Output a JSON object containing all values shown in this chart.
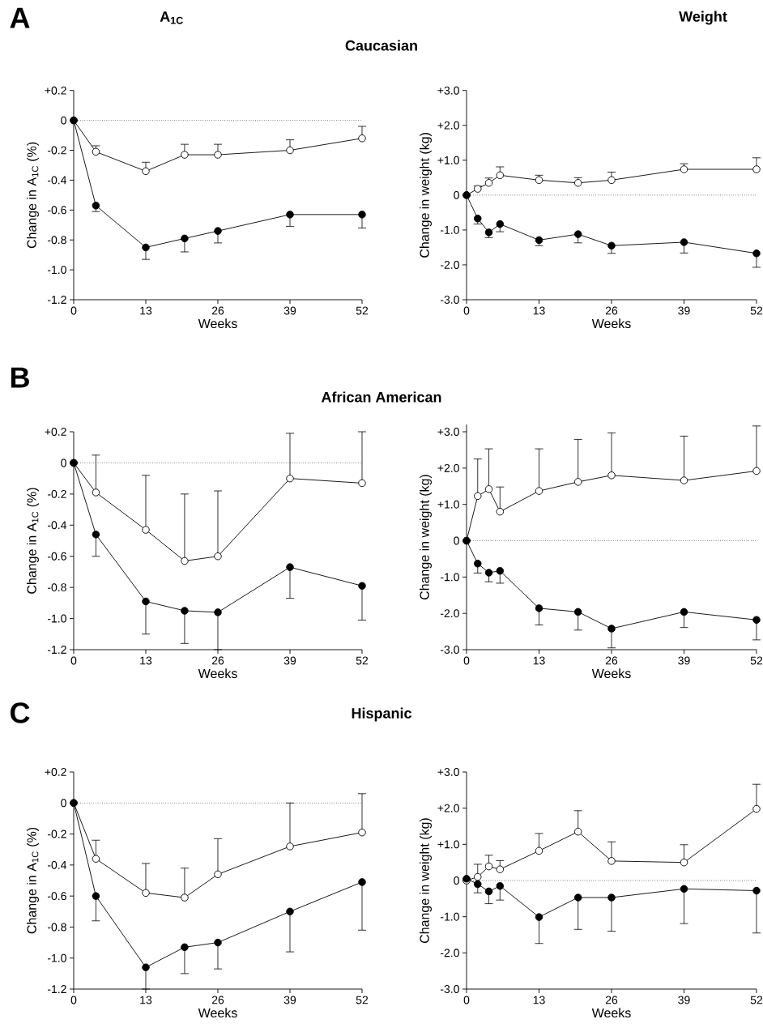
{
  "chart_data": [
    {
      "type": "line",
      "title": "A$_{1C}$",
      "annotations": [
        "A",
        "Caucasian"
      ],
      "xlabel": "Weeks",
      "ylabel": "Change in A$_{1C}$ (%)",
      "marker": "circle",
      "xlim": [
        0,
        52
      ],
      "xticks": [
        0,
        13,
        26,
        39,
        52
      ],
      "ylim": [
        -1.2,
        0.2
      ],
      "yticks": [
        {
          "value": 0.2,
          "label": "+0.2"
        },
        {
          "value": 0,
          "label": "0"
        },
        {
          "value": -0.2,
          "label": "-0.2"
        },
        {
          "value": -0.4,
          "label": "-0.4"
        },
        {
          "value": -0.6,
          "label": "-0.6"
        },
        {
          "value": -0.8,
          "label": "-0.8"
        },
        {
          "value": -1.0,
          "label": "-1.0"
        },
        {
          "value": -1.2,
          "label": "-1.2"
        }
      ],
      "ref_lines": [
        {
          "axis": "y",
          "value": 0,
          "line_style": "dotted"
        }
      ],
      "series": [
        {
          "color": "#ffffff",
          "x": [
            0,
            4,
            13,
            20,
            26,
            39,
            52
          ],
          "values": [
            0,
            -0.21,
            -0.34,
            -0.23,
            -0.23,
            -0.2,
            -0.12
          ],
          "errors": [
            null,
            [
              -0.21,
              -0.17
            ],
            [
              -0.34,
              -0.28
            ],
            [
              -0.23,
              -0.16
            ],
            [
              -0.23,
              -0.16
            ],
            [
              -0.2,
              -0.13
            ],
            [
              -0.12,
              -0.04
            ]
          ]
        },
        {
          "color": "#000000",
          "x": [
            0,
            4,
            13,
            20,
            26,
            39,
            52
          ],
          "values": [
            0,
            -0.57,
            -0.85,
            -0.79,
            -0.74,
            -0.63,
            -0.63
          ],
          "errors": [
            null,
            [
              -0.61,
              -0.57
            ],
            [
              -0.93,
              -0.85
            ],
            [
              -0.88,
              -0.79
            ],
            [
              -0.82,
              -0.74
            ],
            [
              -0.71,
              -0.63
            ],
            [
              -0.72,
              -0.63
            ]
          ]
        }
      ]
    },
    {
      "type": "line",
      "title": "Weight",
      "xlabel": "Weeks",
      "ylabel": "Change in weight (kg)",
      "marker": "circle",
      "xlim": [
        0,
        52
      ],
      "xticks": [
        0,
        13,
        26,
        39,
        52
      ],
      "ylim": [
        -3,
        3
      ],
      "yticks": [
        {
          "value": 3,
          "label": "+3.0"
        },
        {
          "value": 2,
          "label": "+2.0"
        },
        {
          "value": 1,
          "label": "+1.0"
        },
        {
          "value": 0,
          "label": "0"
        },
        {
          "value": -1,
          "label": "-1.0"
        },
        {
          "value": -2,
          "label": "-2.0"
        },
        {
          "value": -3,
          "label": "-3.0"
        }
      ],
      "ref_lines": [
        {
          "axis": "y",
          "value": 0,
          "line_style": "dotted"
        }
      ],
      "series": [
        {
          "color": "#ffffff",
          "x": [
            0,
            2,
            4,
            6,
            13,
            20,
            26,
            39,
            52
          ],
          "values": [
            0,
            0.18,
            0.35,
            0.57,
            0.43,
            0.35,
            0.43,
            0.74,
            0.74
          ],
          "errors": [
            null,
            [
              0.18,
              0.26
            ],
            [
              0.35,
              0.49
            ],
            [
              0.57,
              0.81
            ],
            [
              0.43,
              0.57
            ],
            [
              0.35,
              0.5
            ],
            [
              0.43,
              0.66
            ],
            [
              0.74,
              0.9
            ],
            [
              0.74,
              1.07
            ]
          ]
        },
        {
          "color": "#000000",
          "x": [
            0,
            2,
            4,
            6,
            13,
            20,
            26,
            39,
            52
          ],
          "values": [
            0,
            -0.67,
            -1.07,
            -0.83,
            -1.29,
            -1.12,
            -1.45,
            -1.35,
            -1.67
          ],
          "errors": [
            null,
            [
              -0.83,
              -0.67
            ],
            [
              -1.22,
              -1.07
            ],
            [
              -1.05,
              -0.83
            ],
            [
              -1.45,
              -1.29
            ],
            [
              -1.37,
              -1.12
            ],
            [
              -1.67,
              -1.45
            ],
            [
              -1.66,
              -1.35
            ],
            [
              -2.07,
              -1.67
            ]
          ]
        }
      ]
    },
    {
      "type": "line",
      "annotations": [
        "B",
        "African American"
      ],
      "xlabel": "Weeks",
      "ylabel": "Change in A$_{1C}$ (%)",
      "marker": "circle",
      "xlim": [
        0,
        52
      ],
      "xticks": [
        0,
        13,
        26,
        39,
        52
      ],
      "ylim": [
        -1.2,
        0.2
      ],
      "yticks": [
        {
          "value": 0.2,
          "label": "+0.2"
        },
        {
          "value": 0,
          "label": "0"
        },
        {
          "value": -0.2,
          "label": "-0.2"
        },
        {
          "value": -0.4,
          "label": "-0.4"
        },
        {
          "value": -0.6,
          "label": "-0.6"
        },
        {
          "value": -0.8,
          "label": "-0.8"
        },
        {
          "value": -1.0,
          "label": "-1.0"
        },
        {
          "value": -1.2,
          "label": "-1.2"
        }
      ],
      "ref_lines": [
        {
          "axis": "y",
          "value": 0,
          "line_style": "dotted"
        }
      ],
      "series": [
        {
          "color": "#ffffff",
          "x": [
            0,
            4,
            13,
            20,
            26,
            39,
            52
          ],
          "values": [
            0,
            -0.19,
            -0.43,
            -0.63,
            -0.6,
            -0.1,
            -0.13
          ],
          "errors": [
            null,
            [
              -0.19,
              0.05
            ],
            [
              -0.43,
              -0.08
            ],
            [
              -0.63,
              -0.2
            ],
            [
              -0.6,
              -0.18
            ],
            [
              -0.1,
              0.19
            ],
            [
              -0.13,
              0.2
            ]
          ]
        },
        {
          "color": "#000000",
          "x": [
            0,
            4,
            13,
            20,
            26,
            39,
            52
          ],
          "values": [
            0,
            -0.46,
            -0.89,
            -0.95,
            -0.96,
            -0.67,
            -0.79
          ],
          "errors": [
            null,
            [
              -0.6,
              -0.46
            ],
            [
              -1.1,
              -0.89
            ],
            [
              -1.16,
              -0.95
            ],
            [
              -1.2,
              -0.96
            ],
            [
              -0.87,
              -0.67
            ],
            [
              -1.01,
              -0.79
            ]
          ]
        }
      ]
    },
    {
      "type": "line",
      "xlabel": "Weeks",
      "ylabel": "Change in weight (kg)",
      "marker": "circle",
      "xlim": [
        0,
        52
      ],
      "xticks": [
        0,
        13,
        26,
        39,
        52
      ],
      "ylim": [
        -3,
        3.2
      ],
      "yticks": [
        {
          "value": 3,
          "label": "+3.0"
        },
        {
          "value": 2,
          "label": "+2.0"
        },
        {
          "value": 1,
          "label": "+1.0"
        },
        {
          "value": 0,
          "label": "0"
        },
        {
          "value": -1,
          "label": "-1.0"
        },
        {
          "value": -2,
          "label": "-2.0"
        },
        {
          "value": -3,
          "label": "-3.0"
        }
      ],
      "ref_lines": [
        {
          "axis": "y",
          "value": 0,
          "line_style": "dotted"
        }
      ],
      "series": [
        {
          "color": "#ffffff",
          "x": [
            0,
            2,
            4,
            6,
            13,
            20,
            26,
            39,
            52
          ],
          "values": [
            0,
            1.23,
            1.42,
            0.8,
            1.37,
            1.62,
            1.8,
            1.66,
            1.92
          ],
          "errors": [
            null,
            [
              1.23,
              2.25
            ],
            [
              1.42,
              2.53
            ],
            [
              0.8,
              1.48
            ],
            [
              1.37,
              2.53
            ],
            [
              1.62,
              2.79
            ],
            [
              1.8,
              2.97
            ],
            [
              1.66,
              2.88
            ],
            [
              1.92,
              3.16
            ]
          ]
        },
        {
          "color": "#000000",
          "x": [
            0,
            2,
            4,
            6,
            13,
            20,
            26,
            39,
            52
          ],
          "values": [
            0,
            -0.63,
            -0.88,
            -0.83,
            -1.86,
            -1.96,
            -2.42,
            -1.96,
            -2.18
          ],
          "errors": [
            null,
            [
              -0.89,
              -0.63
            ],
            [
              -1.13,
              -0.88
            ],
            [
              -1.17,
              -0.83
            ],
            [
              -2.32,
              -1.86
            ],
            [
              -2.46,
              -1.96
            ],
            [
              -2.95,
              -2.42
            ],
            [
              -2.39,
              -1.96
            ],
            [
              -2.73,
              -2.18
            ]
          ]
        }
      ]
    },
    {
      "type": "line",
      "annotations": [
        "C",
        "Hispanic"
      ],
      "xlabel": "Weeks",
      "ylabel": "Change in A$_{1C}$ (%)",
      "marker": "circle",
      "xlim": [
        0,
        52
      ],
      "xticks": [
        0,
        13,
        26,
        39,
        52
      ],
      "ylim": [
        -1.2,
        0.2
      ],
      "yticks": [
        {
          "value": 0.2,
          "label": "+0.2"
        },
        {
          "value": 0,
          "label": "0"
        },
        {
          "value": -0.2,
          "label": "-0.2"
        },
        {
          "value": -0.4,
          "label": "-0.4"
        },
        {
          "value": -0.6,
          "label": "-0.6"
        },
        {
          "value": -0.8,
          "label": "-0.8"
        },
        {
          "value": -1.0,
          "label": "-1.0"
        },
        {
          "value": -1.2,
          "label": "-1.2"
        }
      ],
      "ref_lines": [
        {
          "axis": "y",
          "value": 0,
          "line_style": "dotted"
        }
      ],
      "series": [
        {
          "color": "#ffffff",
          "x": [
            0,
            4,
            13,
            20,
            26,
            39,
            52
          ],
          "values": [
            0,
            -0.36,
            -0.58,
            -0.61,
            -0.46,
            -0.28,
            -0.19
          ],
          "errors": [
            null,
            [
              -0.36,
              -0.24
            ],
            [
              -0.58,
              -0.39
            ],
            [
              -0.61,
              -0.42
            ],
            [
              -0.46,
              -0.23
            ],
            [
              -0.28,
              0.0
            ],
            [
              -0.19,
              0.06
            ]
          ]
        },
        {
          "color": "#000000",
          "x": [
            0,
            4,
            13,
            20,
            26,
            39,
            52
          ],
          "values": [
            0,
            -0.6,
            -1.06,
            -0.93,
            -0.9,
            -0.7,
            -0.51
          ],
          "errors": [
            null,
            [
              -0.76,
              -0.6
            ],
            [
              -1.2,
              -1.06
            ],
            [
              -1.1,
              -0.93
            ],
            [
              -1.07,
              -0.9
            ],
            [
              -0.96,
              -0.7
            ],
            [
              -0.82,
              -0.51
            ]
          ]
        }
      ]
    },
    {
      "type": "line",
      "xlabel": "Weeks",
      "ylabel": "Change in weight (kg)",
      "marker": "circle",
      "xlim": [
        0,
        52
      ],
      "xticks": [
        0,
        13,
        26,
        39,
        52
      ],
      "ylim": [
        -3,
        3
      ],
      "yticks": [
        {
          "value": 3,
          "label": "+3.0"
        },
        {
          "value": 2,
          "label": "+2.0"
        },
        {
          "value": 1,
          "label": "+1.0"
        },
        {
          "value": 0,
          "label": "0"
        },
        {
          "value": -1,
          "label": "-1.0"
        },
        {
          "value": -2,
          "label": "-2.0"
        },
        {
          "value": -3,
          "label": "-3.0"
        }
      ],
      "ref_lines": [
        {
          "axis": "y",
          "value": 0,
          "line_style": "dotted"
        }
      ],
      "series": [
        {
          "color": "#ffffff",
          "x": [
            0,
            2,
            4,
            6,
            13,
            20,
            26,
            39,
            52
          ],
          "values": [
            0,
            0.1,
            0.39,
            0.31,
            0.82,
            1.35,
            0.54,
            0.5,
            1.98
          ],
          "errors": [
            null,
            [
              0.1,
              0.45
            ],
            [
              0.39,
              0.7
            ],
            [
              0.31,
              0.55
            ],
            [
              0.82,
              1.3
            ],
            [
              1.35,
              1.93
            ],
            [
              0.54,
              1.07
            ],
            [
              0.5,
              0.99
            ],
            [
              1.98,
              2.66
            ]
          ]
        },
        {
          "color": "#000000",
          "x": [
            0,
            2,
            4,
            6,
            13,
            20,
            26,
            39,
            52
          ],
          "values": [
            0.05,
            -0.1,
            -0.3,
            -0.15,
            -1.01,
            -0.47,
            -0.47,
            -0.23,
            -0.28
          ],
          "errors": [
            null,
            [
              -0.34,
              -0.1
            ],
            [
              -0.64,
              -0.3
            ],
            [
              -0.54,
              -0.15
            ],
            [
              -1.74,
              -1.01
            ],
            [
              -1.35,
              -0.47
            ],
            [
              -1.4,
              -0.47
            ],
            [
              -1.19,
              -0.23
            ],
            [
              -1.45,
              -0.28
            ]
          ]
        }
      ]
    }
  ]
}
